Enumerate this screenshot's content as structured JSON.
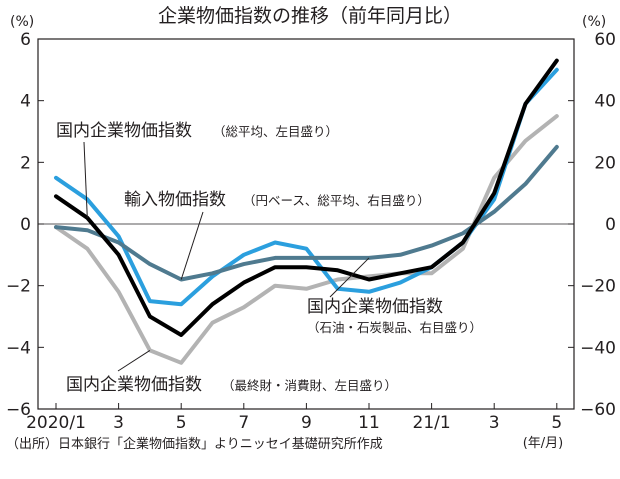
{
  "chart_data": {
    "type": "line",
    "title": "企業物価指数の推移（前年同月比）",
    "y_left": {
      "unit": "(%)",
      "ylim": [
        -6,
        6
      ],
      "ticks": [
        6,
        4,
        2,
        0,
        -2,
        -4,
        -6
      ],
      "tick_labels": [
        "6",
        "4",
        "2",
        "0",
        "−2",
        "−4",
        "−6"
      ]
    },
    "y_right": {
      "unit": "(%)",
      "ylim": [
        -60,
        60
      ],
      "ticks": [
        60,
        40,
        20,
        0,
        -20,
        -40,
        -60
      ],
      "tick_labels": [
        "60",
        "40",
        "20",
        "0",
        "−20",
        "−40",
        "−60"
      ]
    },
    "x_ticks": [
      {
        "index": 0,
        "label": "2020/1"
      },
      {
        "index": 2,
        "label": "3"
      },
      {
        "index": 4,
        "label": "5"
      },
      {
        "index": 6,
        "label": "7"
      },
      {
        "index": 8,
        "label": "9"
      },
      {
        "index": 10,
        "label": "11"
      },
      {
        "index": 12,
        "label": "21/1"
      },
      {
        "index": 14,
        "label": "3"
      },
      {
        "index": 16,
        "label": "5"
      }
    ],
    "x_unit": "(年/月)",
    "source": "（出所）日本銀行「企業物価指数」よりニッセイ基礎研究所作成",
    "categories": [
      "2020/1",
      "2020/2",
      "2020/3",
      "2020/4",
      "2020/5",
      "2020/6",
      "2020/7",
      "2020/8",
      "2020/9",
      "2020/10",
      "2020/11",
      "2020/12",
      "2021/1",
      "2021/2",
      "2021/3",
      "2021/4",
      "2021/5"
    ],
    "series": [
      {
        "name": "国内企業物価指数",
        "name_note": "（総平均、左目盛り）",
        "axis": "left",
        "color": "#000000",
        "values": [
          0.9,
          0.2,
          -1.0,
          -3.0,
          -3.6,
          -2.6,
          -1.9,
          -1.4,
          -1.4,
          -1.5,
          -1.8,
          -1.6,
          -1.4,
          -0.6,
          1.0,
          3.9,
          5.3
        ]
      },
      {
        "name": "輸入物価指数",
        "name_note": "（円ベース、総平均、右目盛り）",
        "axis": "right",
        "color": "#2b9fde",
        "values": [
          15,
          8,
          -4,
          -25,
          -26,
          -17,
          -10,
          -6,
          -8,
          -21,
          -22,
          -19,
          -14,
          -6,
          8,
          39,
          50
        ]
      },
      {
        "name": "国内企業物価指数",
        "name_note": "（石油・石炭製品、右目盛り）",
        "axis": "right",
        "color": "#4f7a8f",
        "values": [
          -1,
          -2,
          -6,
          -13,
          -18,
          -16,
          -13,
          -11,
          -11,
          -11,
          -11,
          -10,
          -7,
          -3,
          4,
          13,
          25
        ]
      },
      {
        "name": "国内企業物価指数",
        "name_note": "（最終財・消費財、左目盛り）",
        "axis": "left",
        "color": "#b3b3b3",
        "values": [
          -0.1,
          -0.8,
          -2.2,
          -4.1,
          -4.5,
          -3.2,
          -2.7,
          -2.0,
          -2.1,
          -1.8,
          -1.7,
          -1.6,
          -1.6,
          -0.8,
          1.5,
          2.7,
          3.5
        ]
      }
    ]
  }
}
